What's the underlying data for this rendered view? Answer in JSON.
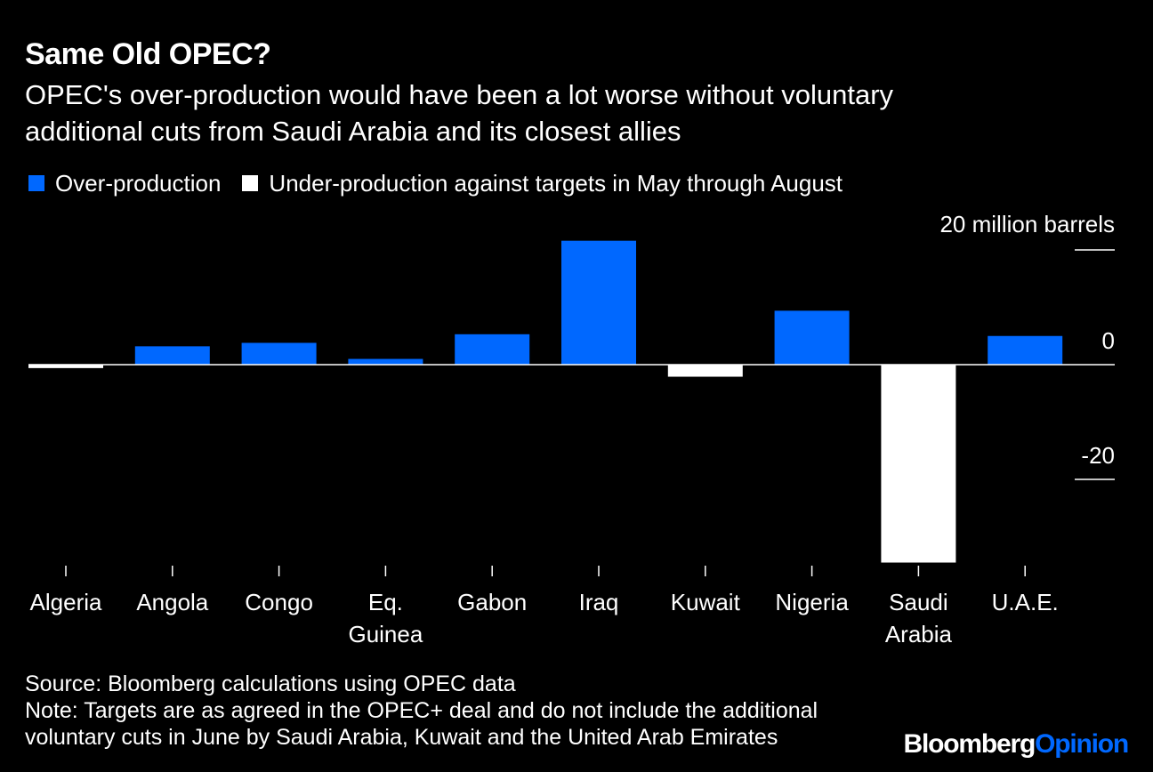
{
  "header": {
    "title": "Same Old OPEC?",
    "subtitle_line1": "OPEC's over-production would have been a lot worse without voluntary",
    "subtitle_line2": "additional cuts from Saudi Arabia and its closest allies"
  },
  "legend": {
    "over_label": "Over-production",
    "under_label": "Under-production against targets in May through August"
  },
  "footer": {
    "source": "Source: Bloomberg calculations using OPEC data",
    "note_line1": "Note: Targets are as agreed in the OPEC+ deal and do not include the additional",
    "note_line2": "voluntary cuts in June by Saudi Arabia, Kuwait and the United Arab Emirates",
    "logo_part1": "Bloomberg",
    "logo_part2": "Opinion"
  },
  "colors": {
    "over": "#0068ff",
    "under": "#ffffff",
    "background": "#000000"
  },
  "chart_data": {
    "type": "bar",
    "title": "Same Old OPEC?",
    "categories": [
      [
        "Algeria"
      ],
      [
        "Angola"
      ],
      [
        "Congo"
      ],
      [
        "Eq.",
        "Guinea"
      ],
      [
        "Gabon"
      ],
      [
        "Iraq"
      ],
      [
        "Kuwait"
      ],
      [
        "Nigeria"
      ],
      [
        "Saudi",
        "Arabia"
      ],
      [
        "U.A.E."
      ]
    ],
    "values": [
      -0.6,
      3.2,
      3.8,
      1.0,
      5.3,
      21.6,
      -2.1,
      9.4,
      -34.5,
      5.0
    ],
    "y_unit_label": "20 million barrels",
    "y_ticks": [
      {
        "value": 20,
        "label": ""
      },
      {
        "value": 0,
        "label": "0"
      },
      {
        "value": -20,
        "label": "-20"
      }
    ],
    "ylim": [
      -35,
      22
    ],
    "grid": false,
    "legend_position": "top-left"
  }
}
